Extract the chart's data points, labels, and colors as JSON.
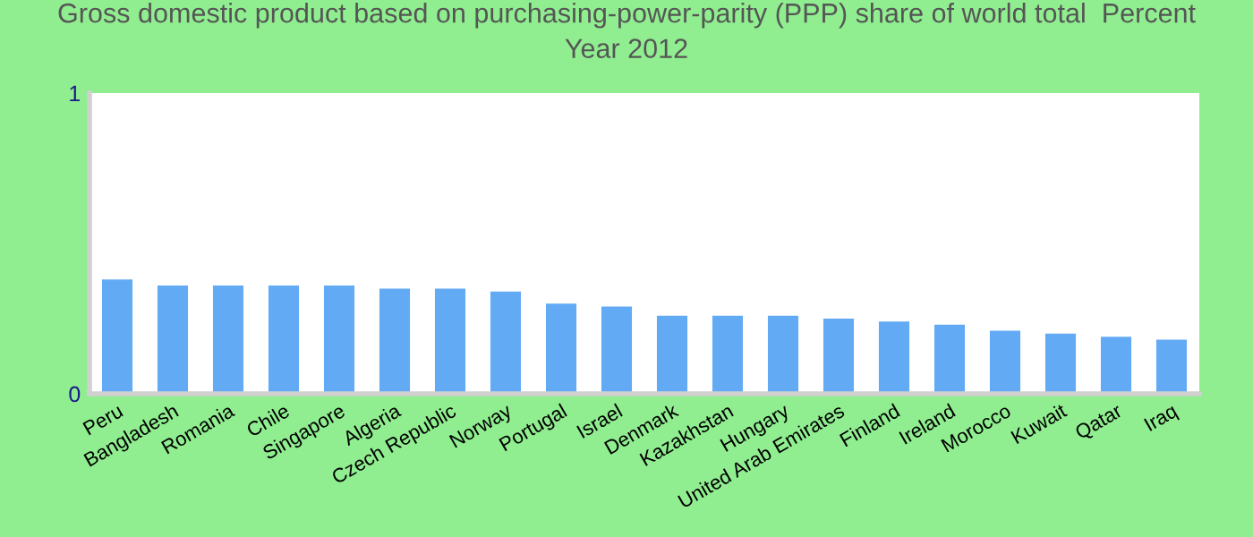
{
  "chart_data": {
    "type": "bar",
    "title": "Gross domestic product based on purchasing-power-parity (PPP) share of world total  Percent\nYear 2012",
    "categories": [
      "Peru",
      "Bangladesh",
      "Romania",
      "Chile",
      "Singapore",
      "Algeria",
      "Czech Republic",
      "Norway",
      "Portugal",
      "Israel",
      "Denmark",
      "Kazakhstan",
      "Hungary",
      "United Arab Emirates",
      "Finland",
      "Ireland",
      "Morocco",
      "Kuwait",
      "Qatar",
      "Iraq"
    ],
    "values": [
      0.38,
      0.36,
      0.36,
      0.36,
      0.36,
      0.35,
      0.35,
      0.34,
      0.3,
      0.29,
      0.26,
      0.26,
      0.26,
      0.25,
      0.24,
      0.23,
      0.21,
      0.2,
      0.19,
      0.18
    ],
    "color": "#63aaf5",
    "ylim": [
      0,
      1
    ],
    "yticks": [
      0,
      1
    ],
    "grid": false
  }
}
